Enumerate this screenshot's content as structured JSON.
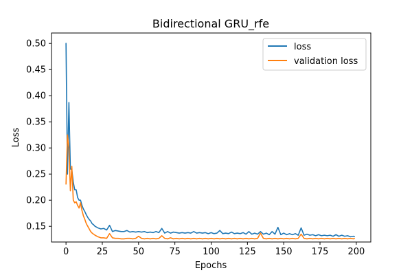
{
  "chart_data": {
    "type": "line",
    "title": "Bidirectional GRU_rfe",
    "xlabel": "Epochs",
    "ylabel": "Loss",
    "xlim": [
      -10,
      210
    ],
    "ylim": [
      0.12,
      0.52
    ],
    "xticks": [
      0,
      25,
      50,
      75,
      100,
      125,
      150,
      175,
      200
    ],
    "yticks": [
      0.15,
      0.2,
      0.25,
      0.3,
      0.35,
      0.4,
      0.45,
      0.5
    ],
    "ytick_labels": [
      "0.15",
      "0.20",
      "0.25",
      "0.30",
      "0.35",
      "0.40",
      "0.45",
      "0.50"
    ],
    "grid": false,
    "legend_position": "upper right",
    "series": [
      {
        "name": "loss",
        "color": "#1f77b4",
        "points": [
          [
            0,
            0.501
          ],
          [
            1,
            0.25
          ],
          [
            2,
            0.387
          ],
          [
            3,
            0.26
          ],
          [
            4,
            0.258
          ],
          [
            5,
            0.235
          ],
          [
            6,
            0.22
          ],
          [
            7,
            0.22
          ],
          [
            8,
            0.205
          ],
          [
            9,
            0.2
          ],
          [
            10,
            0.2
          ],
          [
            11,
            0.19
          ],
          [
            12,
            0.183
          ],
          [
            13,
            0.178
          ],
          [
            14,
            0.172
          ],
          [
            15,
            0.167
          ],
          [
            16,
            0.163
          ],
          [
            17,
            0.16
          ],
          [
            18,
            0.155
          ],
          [
            19,
            0.153
          ],
          [
            20,
            0.15
          ],
          [
            22,
            0.147
          ],
          [
            24,
            0.145
          ],
          [
            26,
            0.146
          ],
          [
            28,
            0.143
          ],
          [
            30,
            0.152
          ],
          [
            32,
            0.14
          ],
          [
            34,
            0.142
          ],
          [
            36,
            0.141
          ],
          [
            38,
            0.14
          ],
          [
            40,
            0.14
          ],
          [
            42,
            0.142
          ],
          [
            44,
            0.139
          ],
          [
            46,
            0.14
          ],
          [
            48,
            0.139
          ],
          [
            50,
            0.14
          ],
          [
            52,
            0.139
          ],
          [
            54,
            0.14
          ],
          [
            56,
            0.138
          ],
          [
            58,
            0.139
          ],
          [
            60,
            0.138
          ],
          [
            62,
            0.14
          ],
          [
            64,
            0.138
          ],
          [
            66,
            0.146
          ],
          [
            68,
            0.137
          ],
          [
            70,
            0.14
          ],
          [
            72,
            0.137
          ],
          [
            74,
            0.139
          ],
          [
            76,
            0.138
          ],
          [
            78,
            0.137
          ],
          [
            80,
            0.138
          ],
          [
            82,
            0.137
          ],
          [
            84,
            0.138
          ],
          [
            86,
            0.137
          ],
          [
            88,
            0.14
          ],
          [
            90,
            0.137
          ],
          [
            92,
            0.138
          ],
          [
            94,
            0.137
          ],
          [
            96,
            0.138
          ],
          [
            98,
            0.136
          ],
          [
            100,
            0.138
          ],
          [
            102,
            0.136
          ],
          [
            104,
            0.137
          ],
          [
            106,
            0.142
          ],
          [
            108,
            0.136
          ],
          [
            110,
            0.137
          ],
          [
            112,
            0.136
          ],
          [
            114,
            0.139
          ],
          [
            116,
            0.136
          ],
          [
            118,
            0.137
          ],
          [
            120,
            0.136
          ],
          [
            122,
            0.138
          ],
          [
            124,
            0.135
          ],
          [
            126,
            0.14
          ],
          [
            128,
            0.135
          ],
          [
            130,
            0.137
          ],
          [
            132,
            0.135
          ],
          [
            134,
            0.14
          ],
          [
            136,
            0.135
          ],
          [
            138,
            0.137
          ],
          [
            140,
            0.134
          ],
          [
            142,
            0.14
          ],
          [
            144,
            0.135
          ],
          [
            146,
            0.148
          ],
          [
            148,
            0.134
          ],
          [
            150,
            0.137
          ],
          [
            152,
            0.134
          ],
          [
            154,
            0.136
          ],
          [
            156,
            0.134
          ],
          [
            158,
            0.136
          ],
          [
            160,
            0.133
          ],
          [
            162,
            0.147
          ],
          [
            164,
            0.133
          ],
          [
            166,
            0.135
          ],
          [
            168,
            0.133
          ],
          [
            170,
            0.134
          ],
          [
            172,
            0.132
          ],
          [
            174,
            0.134
          ],
          [
            176,
            0.132
          ],
          [
            178,
            0.133
          ],
          [
            180,
            0.132
          ],
          [
            182,
            0.133
          ],
          [
            184,
            0.131
          ],
          [
            186,
            0.134
          ],
          [
            188,
            0.131
          ],
          [
            190,
            0.133
          ],
          [
            192,
            0.131
          ],
          [
            194,
            0.132
          ],
          [
            196,
            0.13
          ],
          [
            198,
            0.131
          ],
          [
            199,
            0.13
          ]
        ]
      },
      {
        "name": "validation loss",
        "color": "#ff7f0e",
        "points": [
          [
            0,
            0.23
          ],
          [
            1,
            0.325
          ],
          [
            2,
            0.3
          ],
          [
            3,
            0.218
          ],
          [
            4,
            0.265
          ],
          [
            5,
            0.2
          ],
          [
            6,
            0.195
          ],
          [
            7,
            0.197
          ],
          [
            8,
            0.19
          ],
          [
            9,
            0.185
          ],
          [
            10,
            0.195
          ],
          [
            11,
            0.18
          ],
          [
            12,
            0.17
          ],
          [
            13,
            0.163
          ],
          [
            14,
            0.155
          ],
          [
            15,
            0.15
          ],
          [
            16,
            0.145
          ],
          [
            17,
            0.14
          ],
          [
            18,
            0.137
          ],
          [
            19,
            0.135
          ],
          [
            20,
            0.133
          ],
          [
            22,
            0.13
          ],
          [
            24,
            0.128
          ],
          [
            26,
            0.128
          ],
          [
            28,
            0.127
          ],
          [
            30,
            0.136
          ],
          [
            32,
            0.128
          ],
          [
            34,
            0.127
          ],
          [
            36,
            0.127
          ],
          [
            38,
            0.126
          ],
          [
            40,
            0.126
          ],
          [
            42,
            0.127
          ],
          [
            44,
            0.127
          ],
          [
            46,
            0.126
          ],
          [
            48,
            0.127
          ],
          [
            50,
            0.131
          ],
          [
            52,
            0.127
          ],
          [
            54,
            0.126
          ],
          [
            56,
            0.127
          ],
          [
            58,
            0.126
          ],
          [
            60,
            0.127
          ],
          [
            62,
            0.126
          ],
          [
            64,
            0.127
          ],
          [
            66,
            0.132
          ],
          [
            68,
            0.127
          ],
          [
            70,
            0.126
          ],
          [
            72,
            0.128
          ],
          [
            74,
            0.126
          ],
          [
            76,
            0.127
          ],
          [
            78,
            0.126
          ],
          [
            80,
            0.127
          ],
          [
            82,
            0.126
          ],
          [
            84,
            0.127
          ],
          [
            86,
            0.126
          ],
          [
            88,
            0.127
          ],
          [
            90,
            0.126
          ],
          [
            92,
            0.127
          ],
          [
            94,
            0.126
          ],
          [
            96,
            0.127
          ],
          [
            98,
            0.126
          ],
          [
            100,
            0.127
          ],
          [
            102,
            0.126
          ],
          [
            104,
            0.127
          ],
          [
            106,
            0.126
          ],
          [
            108,
            0.127
          ],
          [
            110,
            0.126
          ],
          [
            112,
            0.127
          ],
          [
            114,
            0.126
          ],
          [
            116,
            0.127
          ],
          [
            118,
            0.126
          ],
          [
            120,
            0.127
          ],
          [
            122,
            0.126
          ],
          [
            124,
            0.127
          ],
          [
            126,
            0.126
          ],
          [
            128,
            0.127
          ],
          [
            130,
            0.126
          ],
          [
            132,
            0.127
          ],
          [
            134,
            0.137
          ],
          [
            136,
            0.127
          ],
          [
            138,
            0.126
          ],
          [
            140,
            0.127
          ],
          [
            142,
            0.126
          ],
          [
            144,
            0.127
          ],
          [
            146,
            0.126
          ],
          [
            148,
            0.127
          ],
          [
            150,
            0.126
          ],
          [
            152,
            0.127
          ],
          [
            154,
            0.126
          ],
          [
            156,
            0.127
          ],
          [
            158,
            0.126
          ],
          [
            160,
            0.127
          ],
          [
            162,
            0.135
          ],
          [
            164,
            0.127
          ],
          [
            166,
            0.126
          ],
          [
            168,
            0.127
          ],
          [
            170,
            0.126
          ],
          [
            172,
            0.127
          ],
          [
            174,
            0.126
          ],
          [
            176,
            0.127
          ],
          [
            178,
            0.126
          ],
          [
            180,
            0.127
          ],
          [
            182,
            0.126
          ],
          [
            184,
            0.127
          ],
          [
            186,
            0.126
          ],
          [
            188,
            0.127
          ],
          [
            190,
            0.126
          ],
          [
            192,
            0.127
          ],
          [
            194,
            0.126
          ],
          [
            196,
            0.127
          ],
          [
            198,
            0.126
          ],
          [
            199,
            0.127
          ]
        ]
      }
    ]
  }
}
